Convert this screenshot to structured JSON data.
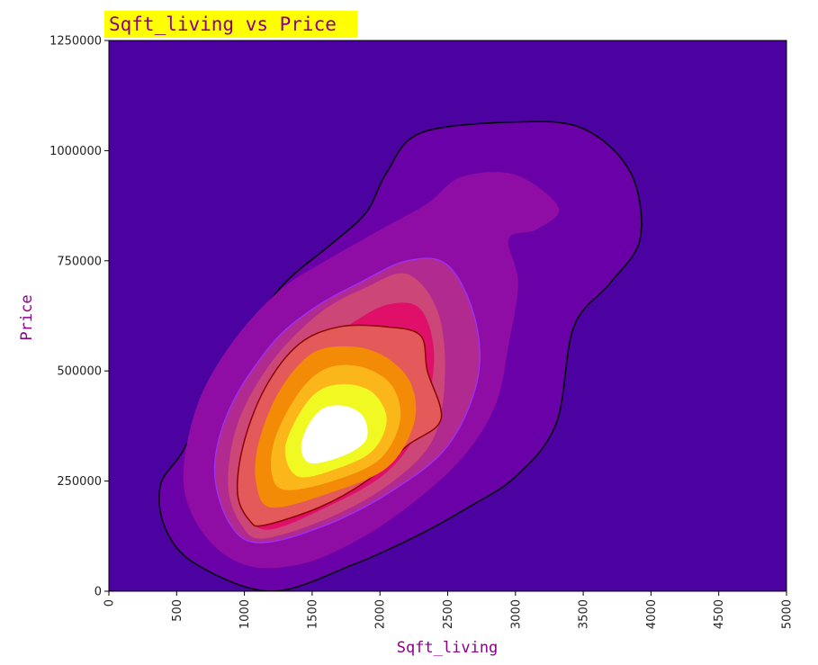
{
  "chart_data": {
    "type": "kde-density",
    "title": "Sqft_living vs Price",
    "xlabel": "Sqft_living",
    "ylabel": "Price",
    "xlim": [
      0,
      5000
    ],
    "ylim": [
      0,
      1250000
    ],
    "x_ticks": [
      "0",
      "500",
      "1000",
      "1500",
      "2000",
      "2500",
      "3000",
      "3500",
      "4000",
      "4500",
      "5000"
    ],
    "y_ticks": [
      "0",
      "250000",
      "500000",
      "750000",
      "1000000",
      "1250000"
    ],
    "colormap": "plasma",
    "density_peak": {
      "x": 1650,
      "y": 340000
    },
    "levels": [
      {
        "color": "#4c02a1",
        "points": [
          [
            0,
            0
          ],
          [
            5000,
            0
          ],
          [
            5000,
            1250000
          ],
          [
            0,
            1250000
          ]
        ]
      },
      {
        "color": "#6a00a8",
        "outline": "#000000",
        "points": [
          [
            1200,
            0
          ],
          [
            1800,
            60000
          ],
          [
            2300,
            130000
          ],
          [
            2650,
            190000
          ],
          [
            3000,
            260000
          ],
          [
            3300,
            380000
          ],
          [
            3430,
            600000
          ],
          [
            3700,
            700000
          ],
          [
            3920,
            800000
          ],
          [
            3850,
            950000
          ],
          [
            3500,
            1050000
          ],
          [
            3000,
            1065000
          ],
          [
            2300,
            1040000
          ],
          [
            2050,
            950000
          ],
          [
            1900,
            860000
          ],
          [
            1650,
            790000
          ],
          [
            1300,
            700000
          ],
          [
            1000,
            580000
          ],
          [
            750,
            450000
          ],
          [
            550,
            320000
          ],
          [
            380,
            240000
          ],
          [
            420,
            140000
          ],
          [
            650,
            60000
          ]
        ]
      },
      {
        "color": "#8f0da4",
        "points": [
          [
            2350,
            880000
          ],
          [
            2600,
            940000
          ],
          [
            3000,
            945000
          ],
          [
            3320,
            870000
          ],
          [
            3150,
            820000
          ],
          [
            2950,
            800000
          ],
          [
            3020,
            700000
          ],
          [
            2950,
            560000
          ],
          [
            2850,
            420000
          ],
          [
            2600,
            300000
          ],
          [
            2200,
            190000
          ],
          [
            1800,
            110000
          ],
          [
            1400,
            60000
          ],
          [
            1000,
            60000
          ],
          [
            700,
            130000
          ],
          [
            550,
            250000
          ],
          [
            650,
            420000
          ],
          [
            900,
            560000
          ],
          [
            1250,
            680000
          ],
          [
            1600,
            750000
          ],
          [
            2000,
            820000
          ]
        ]
      },
      {
        "color": "#b12a90",
        "points": [
          [
            1100,
            110000
          ],
          [
            1600,
            150000
          ],
          [
            2100,
            230000
          ],
          [
            2500,
            330000
          ],
          [
            2720,
            480000
          ],
          [
            2700,
            620000
          ],
          [
            2500,
            740000
          ],
          [
            2200,
            750000
          ],
          [
            1850,
            700000
          ],
          [
            1500,
            640000
          ],
          [
            1200,
            560000
          ],
          [
            900,
            420000
          ],
          [
            780,
            280000
          ],
          [
            880,
            160000
          ]
        ]
      },
      {
        "color": "#cc4778",
        "points": [
          [
            1150,
            120000
          ],
          [
            1650,
            170000
          ],
          [
            2100,
            250000
          ],
          [
            2400,
            350000
          ],
          [
            2480,
            500000
          ],
          [
            2420,
            640000
          ],
          [
            2200,
            720000
          ],
          [
            1900,
            690000
          ],
          [
            1550,
            630000
          ],
          [
            1200,
            520000
          ],
          [
            950,
            380000
          ],
          [
            880,
            240000
          ],
          [
            980,
            150000
          ]
        ]
      },
      {
        "color": "#e0106a",
        "points": [
          [
            1150,
            140000
          ],
          [
            1600,
            190000
          ],
          [
            2050,
            270000
          ],
          [
            2300,
            380000
          ],
          [
            2400,
            530000
          ],
          [
            2300,
            640000
          ],
          [
            2050,
            650000
          ],
          [
            1750,
            600000
          ],
          [
            1450,
            540000
          ],
          [
            1150,
            440000
          ],
          [
            980,
            320000
          ],
          [
            960,
            210000
          ]
        ]
      },
      {
        "color": "#e45a5a",
        "outline": "#8b0000",
        "points": [
          [
            1150,
            150000
          ],
          [
            1550,
            190000
          ],
          [
            1900,
            250000
          ],
          [
            2200,
            330000
          ],
          [
            2450,
            390000
          ],
          [
            2350,
            500000
          ],
          [
            2300,
            580000
          ],
          [
            2050,
            600000
          ],
          [
            1700,
            600000
          ],
          [
            1400,
            560000
          ],
          [
            1150,
            460000
          ],
          [
            990,
            330000
          ],
          [
            950,
            220000
          ],
          [
            1040,
            160000
          ]
        ]
      },
      {
        "color": "#f48b06",
        "points": [
          [
            1200,
            190000
          ],
          [
            1600,
            220000
          ],
          [
            2050,
            280000
          ],
          [
            2250,
            380000
          ],
          [
            2230,
            470000
          ],
          [
            2050,
            530000
          ],
          [
            1800,
            555000
          ],
          [
            1500,
            540000
          ],
          [
            1250,
            450000
          ],
          [
            1100,
            330000
          ],
          [
            1090,
            240000
          ]
        ]
      },
      {
        "color": "#fbb61a",
        "points": [
          [
            1300,
            230000
          ],
          [
            1650,
            250000
          ],
          [
            2000,
            300000
          ],
          [
            2150,
            390000
          ],
          [
            2080,
            470000
          ],
          [
            1850,
            510000
          ],
          [
            1600,
            505000
          ],
          [
            1400,
            450000
          ],
          [
            1230,
            350000
          ],
          [
            1200,
            270000
          ]
        ]
      },
      {
        "color": "#f0f921",
        "points": [
          [
            1400,
            260000
          ],
          [
            1700,
            280000
          ],
          [
            1950,
            320000
          ],
          [
            2050,
            390000
          ],
          [
            1950,
            450000
          ],
          [
            1750,
            470000
          ],
          [
            1550,
            455000
          ],
          [
            1400,
            400000
          ],
          [
            1300,
            320000
          ]
        ]
      },
      {
        "color": "#ffffff",
        "points": [
          [
            1500,
            290000
          ],
          [
            1750,
            310000
          ],
          [
            1900,
            345000
          ],
          [
            1880,
            395000
          ],
          [
            1750,
            420000
          ],
          [
            1580,
            415000
          ],
          [
            1460,
            370000
          ],
          [
            1420,
            320000
          ]
        ]
      }
    ]
  }
}
